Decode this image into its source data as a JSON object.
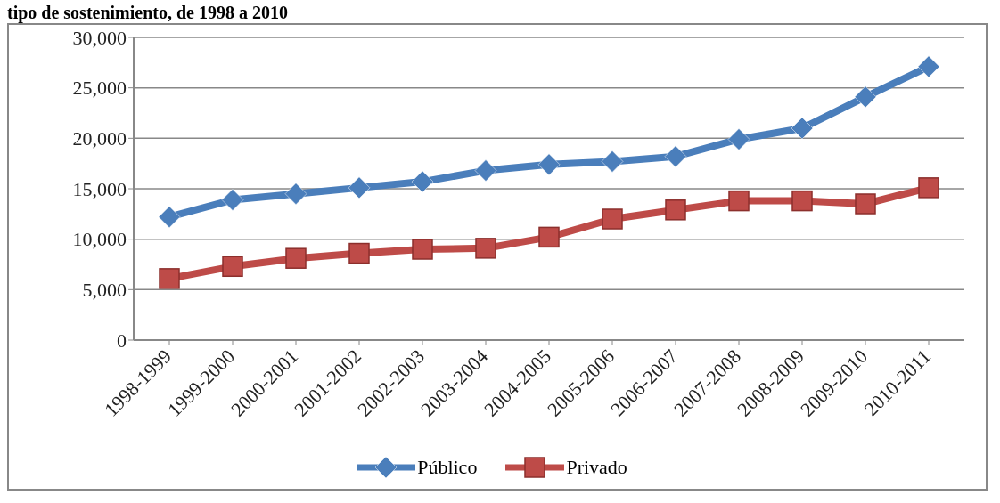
{
  "chart_data": {
    "type": "line",
    "title": "tipo de sostenimiento, de 1998 a 2010",
    "categories": [
      "1998-1999",
      "1999-2000",
      "2000-2001",
      "2001-2002",
      "2002-2003",
      "2003-2004",
      "2004-2005",
      "2005-2006",
      "2006-2007",
      "2007-2008",
      "2008-2009",
      "2009-2010",
      "2010-2011"
    ],
    "series": [
      {
        "name": "Público",
        "color": "#4a7ebb",
        "marker": "diamond",
        "values": [
          12200,
          13900,
          14500,
          15100,
          15700,
          16800,
          17400,
          17700,
          18200,
          19900,
          21000,
          24100,
          27100
        ]
      },
      {
        "name": "Privado",
        "color": "#be4b48",
        "marker": "square",
        "values": [
          6100,
          7300,
          8100,
          8600,
          9000,
          9100,
          10200,
          12000,
          12900,
          13800,
          13800,
          13500,
          15100
        ]
      }
    ],
    "ylim": [
      0,
      30000
    ],
    "yticks": [
      0,
      {
        "value": 5000,
        "label": "5,000"
      },
      {
        "value": 10000,
        "label": "10,000"
      },
      {
        "value": 15000,
        "label": "15,000"
      },
      {
        "value": 20000,
        "label": "20,000"
      },
      {
        "value": 25000,
        "label": "25,000"
      },
      {
        "value": 30000,
        "label": "30,000"
      }
    ],
    "grid": "y",
    "legend": "bottom"
  }
}
